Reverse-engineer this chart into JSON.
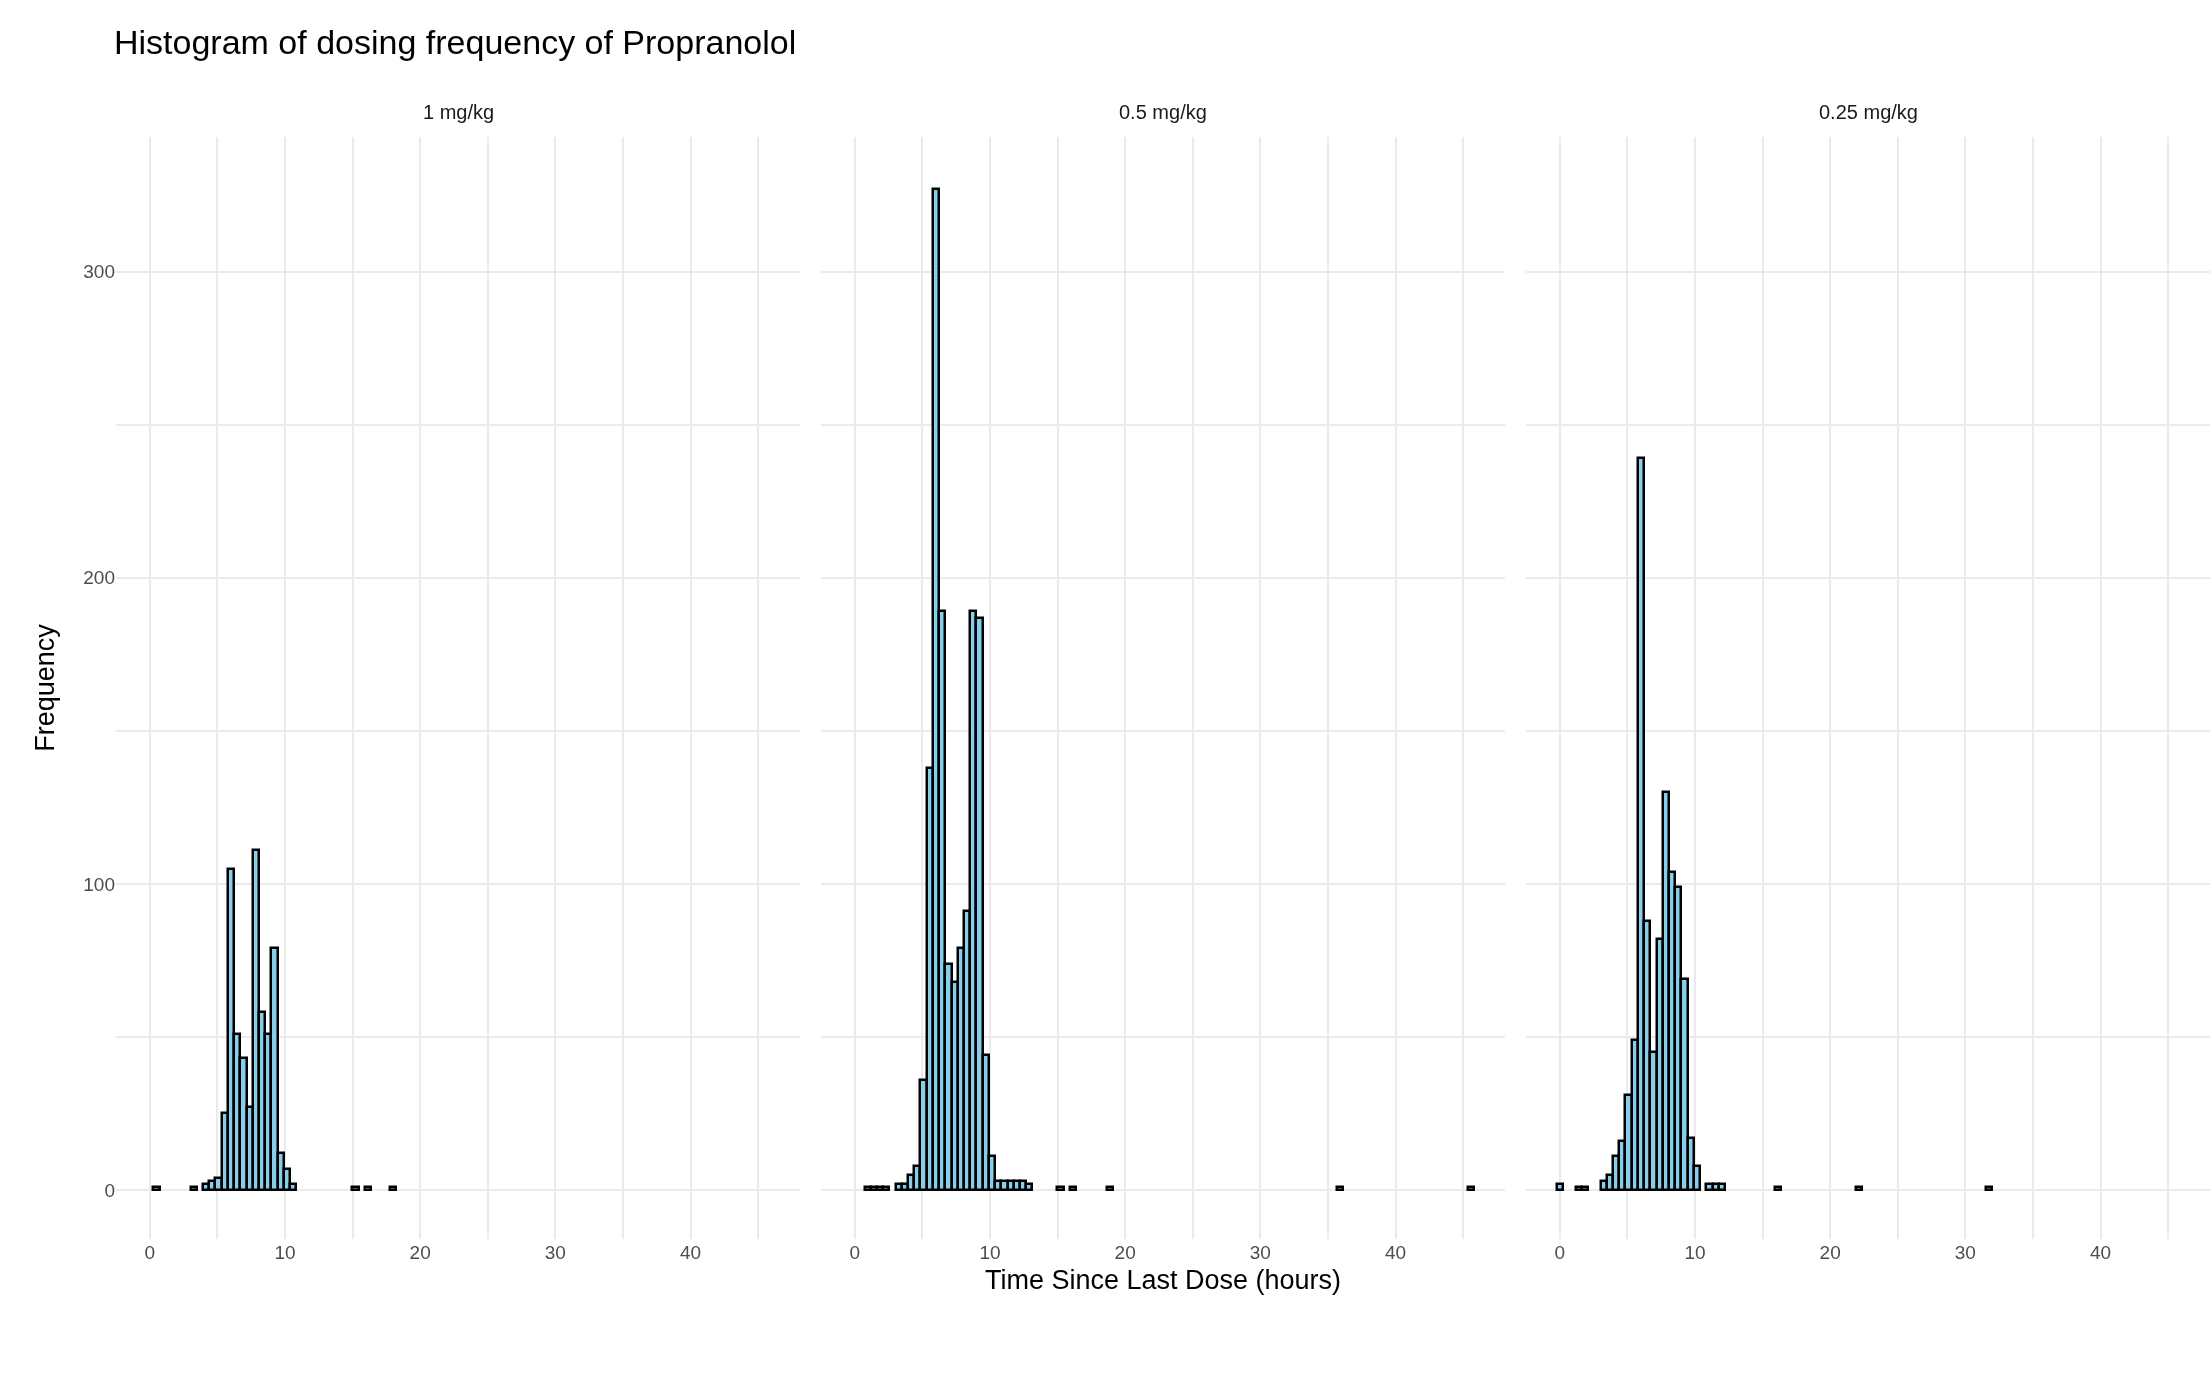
{
  "chart_data": [
    {
      "type": "histogram",
      "title": "Histogram of dosing frequency of Propranolol",
      "subtitle": "1 mg/kg",
      "ylabel": "Frequency",
      "color": "#87ceeb",
      "bins": [
        -0.2,
        0.26,
        0.72,
        1.18,
        1.64,
        2.1,
        2.56,
        3.02,
        3.48,
        3.94,
        4.4,
        4.86,
        5.32,
        5.78,
        6.24,
        6.7,
        7.16,
        7.62,
        8.08,
        8.54,
        9.0,
        9.46,
        9.92,
        10.38,
        10.84,
        11.3,
        11.76,
        12.22,
        12.68,
        13.14,
        13.6,
        14.06,
        14.52,
        14.98,
        15.44,
        15.9,
        16.36,
        16.82,
        17.28,
        17.74,
        18.2,
        18.66,
        19.12,
        19.58,
        20.04,
        20.5,
        20.96,
        21.42,
        21.88,
        22.34,
        22.8,
        23.26,
        23.72,
        24.18,
        24.64,
        25.1,
        25.56,
        26.02,
        26.48,
        26.94,
        27.4,
        27.86,
        28.32,
        28.78,
        29.24,
        29.7,
        30.16,
        30.62,
        31.08,
        31.54,
        32.0,
        32.46,
        32.92,
        33.38,
        33.84,
        34.3,
        34.76,
        35.22,
        35.68,
        36.14,
        36.6,
        37.06,
        37.52,
        37.98,
        38.44,
        38.9,
        39.36,
        39.82,
        40.28,
        40.74,
        41.2,
        41.66,
        42.12,
        42.58,
        43.04,
        43.5,
        43.96,
        44.42,
        44.88,
        45.34,
        45.8
      ],
      "values": [
        0,
        1,
        0,
        0,
        0,
        0,
        0,
        1,
        0,
        2,
        3,
        4,
        25,
        105,
        51,
        43,
        27,
        111,
        58,
        51,
        79,
        12,
        7,
        2,
        0,
        0,
        0,
        0,
        0,
        0,
        0,
        0,
        0,
        1,
        0,
        1,
        0,
        0,
        0,
        1,
        0,
        0,
        0,
        0,
        0,
        0,
        0,
        0,
        0,
        0,
        0,
        0,
        0,
        0,
        0,
        0,
        0,
        0,
        0,
        0,
        0,
        0,
        0,
        0,
        0,
        0,
        0,
        0,
        0,
        0,
        0,
        0,
        0,
        0,
        0,
        0,
        0,
        0,
        0,
        0,
        0,
        0,
        0,
        0,
        0,
        0,
        0,
        0,
        0,
        0,
        0,
        0,
        0,
        0,
        0,
        0,
        0,
        0,
        0,
        0
      ],
      "xlim": [
        -2.5,
        48.1
      ],
      "ylim": [
        -16,
        344
      ],
      "xticks": [
        0,
        {
          "value": 5,
          "label": null
        },
        10,
        {
          "value": 15,
          "label": null
        },
        20,
        {
          "value": 25,
          "label": null
        },
        30,
        {
          "value": 35,
          "label": null
        },
        40,
        {
          "value": 45,
          "label": null
        }
      ],
      "yticks": [
        0,
        {
          "value": 50,
          "label": null
        },
        100,
        {
          "value": 150,
          "label": null
        },
        200,
        {
          "value": 250,
          "label": null
        },
        300
      ],
      "grid": true
    },
    {
      "type": "histogram",
      "subtitle": "0.5 mg/kg",
      "xlabel": "Time Since Last Dose (hours)",
      "color": "#87ceeb",
      "bins": [
        -0.2,
        0.26,
        0.72,
        1.18,
        1.64,
        2.1,
        2.56,
        3.02,
        3.48,
        3.94,
        4.4,
        4.86,
        5.32,
        5.78,
        6.24,
        6.7,
        7.16,
        7.62,
        8.08,
        8.54,
        9.0,
        9.46,
        9.92,
        10.38,
        10.84,
        11.3,
        11.76,
        12.22,
        12.68,
        13.14,
        13.6,
        14.06,
        14.52,
        14.98,
        15.44,
        15.9,
        16.36,
        16.82,
        17.28,
        17.74,
        18.2,
        18.66,
        19.12,
        19.58,
        20.04,
        20.5,
        20.96,
        21.42,
        21.88,
        22.34,
        22.8,
        23.26,
        23.72,
        24.18,
        24.64,
        25.1,
        25.56,
        26.02,
        26.48,
        26.94,
        27.4,
        27.86,
        28.32,
        28.78,
        29.24,
        29.7,
        30.16,
        30.62,
        31.08,
        31.54,
        32.0,
        32.46,
        32.92,
        33.38,
        33.84,
        34.3,
        34.76,
        35.22,
        35.68,
        36.14,
        36.6,
        37.06,
        37.52,
        37.98,
        38.44,
        38.9,
        39.36,
        39.82,
        40.28,
        40.74,
        41.2,
        41.66,
        42.12,
        42.58,
        43.04,
        43.5,
        43.96,
        44.42,
        44.88,
        45.34,
        45.8
      ],
      "values": [
        0,
        0,
        1,
        1,
        1,
        1,
        0,
        2,
        2,
        5,
        8,
        36,
        138,
        327,
        189,
        74,
        68,
        79,
        91,
        189,
        187,
        44,
        11,
        3,
        3,
        3,
        3,
        3,
        2,
        0,
        0,
        0,
        0,
        1,
        0,
        1,
        0,
        0,
        0,
        0,
        0,
        1,
        0,
        0,
        0,
        0,
        0,
        0,
        0,
        0,
        0,
        0,
        0,
        0,
        0,
        0,
        0,
        0,
        0,
        0,
        0,
        0,
        0,
        0,
        0,
        0,
        0,
        0,
        0,
        0,
        0,
        0,
        0,
        0,
        0,
        0,
        0,
        0,
        1,
        0,
        0,
        0,
        0,
        0,
        0,
        0,
        0,
        0,
        0,
        0,
        0,
        0,
        0,
        0,
        0,
        0,
        0,
        0,
        0,
        1
      ],
      "xlim": [
        -2.5,
        48.1
      ],
      "ylim": [
        -16,
        344
      ],
      "xticks": [
        0,
        {
          "value": 5,
          "label": null
        },
        10,
        {
          "value": 15,
          "label": null
        },
        20,
        {
          "value": 25,
          "label": null
        },
        30,
        {
          "value": 35,
          "label": null
        },
        40,
        {
          "value": 45,
          "label": null
        }
      ],
      "yticks": [
        0,
        {
          "value": 50,
          "label": null
        },
        100,
        {
          "value": 150,
          "label": null
        },
        200,
        {
          "value": 250,
          "label": null
        },
        300
      ],
      "grid": true,
      "tick_labels": "x"
    },
    {
      "type": "histogram",
      "subtitle": "0.25 mg/kg",
      "color": "#87ceeb",
      "bins": [
        -0.2,
        0.26,
        0.72,
        1.18,
        1.64,
        2.1,
        2.56,
        3.02,
        3.48,
        3.94,
        4.4,
        4.86,
        5.32,
        5.78,
        6.24,
        6.7,
        7.16,
        7.62,
        8.08,
        8.54,
        9.0,
        9.46,
        9.92,
        10.38,
        10.84,
        11.3,
        11.76,
        12.22,
        12.68,
        13.14,
        13.6,
        14.06,
        14.52,
        14.98,
        15.44,
        15.9,
        16.36,
        16.82,
        17.28,
        17.74,
        18.2,
        18.66,
        19.12,
        19.58,
        20.04,
        20.5,
        20.96,
        21.42,
        21.88,
        22.34,
        22.8,
        23.26,
        23.72,
        24.18,
        24.64,
        25.1,
        25.56,
        26.02,
        26.48,
        26.94,
        27.4,
        27.86,
        28.32,
        28.78,
        29.24,
        29.7,
        30.16,
        30.62,
        31.08,
        31.54,
        32.0,
        32.46,
        32.92,
        33.38,
        33.84,
        34.3,
        34.76,
        35.22,
        35.68,
        36.14,
        36.6,
        37.06,
        37.52,
        37.98,
        38.44,
        38.9,
        39.36,
        39.82,
        40.28,
        40.74,
        41.2,
        41.66,
        42.12,
        42.58,
        43.04,
        43.5,
        43.96,
        44.42,
        44.88,
        45.34,
        45.8
      ],
      "values": [
        2,
        0,
        0,
        1,
        1,
        0,
        0,
        3,
        5,
        11,
        16,
        31,
        49,
        239,
        88,
        45,
        82,
        130,
        104,
        99,
        69,
        17,
        8,
        0,
        2,
        2,
        2,
        0,
        0,
        0,
        0,
        0,
        0,
        0,
        0,
        1,
        0,
        0,
        0,
        0,
        0,
        0,
        0,
        0,
        0,
        0,
        0,
        0,
        1,
        0,
        0,
        0,
        0,
        0,
        0,
        0,
        0,
        0,
        0,
        0,
        0,
        0,
        0,
        0,
        0,
        0,
        0,
        0,
        0,
        1,
        0,
        0,
        0,
        0,
        0,
        0,
        0,
        0,
        0,
        0,
        0,
        0,
        0,
        0,
        0,
        0,
        0,
        0,
        0,
        0,
        0,
        0,
        0,
        0,
        0,
        0,
        0,
        0,
        0,
        0
      ],
      "xlim": [
        -2.5,
        48.1
      ],
      "ylim": [
        -16,
        344
      ],
      "xticks": [
        0,
        {
          "value": 5,
          "label": null
        },
        10,
        {
          "value": 15,
          "label": null
        },
        20,
        {
          "value": 25,
          "label": null
        },
        30,
        {
          "value": 35,
          "label": null
        },
        40,
        {
          "value": 45,
          "label": null
        }
      ],
      "yticks": [
        0,
        {
          "value": 50,
          "label": null
        },
        100,
        {
          "value": 150,
          "label": null
        },
        200,
        {
          "value": 250,
          "label": null
        },
        300
      ],
      "grid": true,
      "tick_labels": "x"
    }
  ]
}
